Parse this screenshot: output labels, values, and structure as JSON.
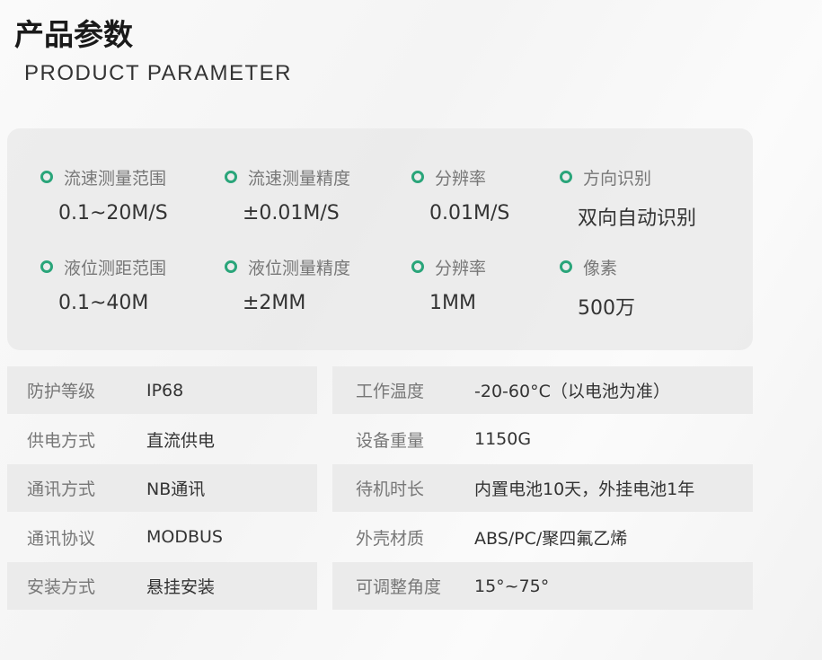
{
  "header": {
    "title": "产品参数",
    "subtitle": "PRODUCT PARAMETER"
  },
  "accent_color": "#2aa57a",
  "highlights": [
    {
      "label": "流速测量范围",
      "value": "0.1~20M/S"
    },
    {
      "label": "流速测量精度",
      "value": "±0.01M/S"
    },
    {
      "label": "分辨率",
      "value": "0.01M/S"
    },
    {
      "label": "方向识别",
      "value": "双向自动识别"
    },
    {
      "label": "液位测距范围",
      "value": "0.1~40M"
    },
    {
      "label": "液位测量精度",
      "value": "±2MM"
    },
    {
      "label": "分辨率",
      "value": "1MM"
    },
    {
      "label": "像素",
      "value": "500万"
    }
  ],
  "specs": [
    {
      "left": {
        "label": "防护等级",
        "value": "IP68"
      },
      "right": {
        "label": "工作温度",
        "value": "-20-60°C（以电池为准）"
      }
    },
    {
      "left": {
        "label": "供电方式",
        "value": "直流供电"
      },
      "right": {
        "label": "设备重量",
        "value": "1150G"
      }
    },
    {
      "left": {
        "label": "通讯方式",
        "value": "NB通讯"
      },
      "right": {
        "label": "待机时长",
        "value": "内置电池10天，外挂电池1年"
      }
    },
    {
      "left": {
        "label": "通讯协议",
        "value": "MODBUS"
      },
      "right": {
        "label": "外壳材质",
        "value": "ABS/PC/聚四氟乙烯"
      }
    },
    {
      "left": {
        "label": "安装方式",
        "value": "悬挂安装"
      },
      "right": {
        "label": "可调整角度",
        "value": "15°~75°"
      }
    }
  ]
}
